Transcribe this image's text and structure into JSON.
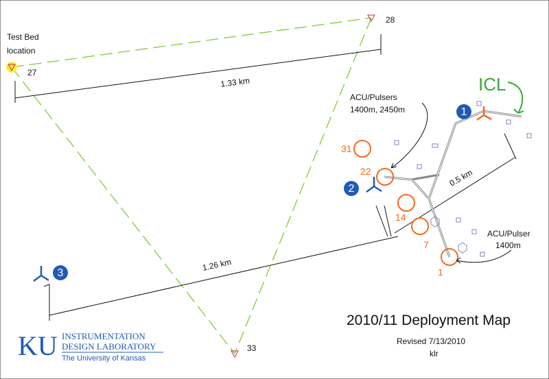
{
  "header": {
    "title": "2010/11 Deployment Map",
    "revised": "Revised 7/13/2010",
    "author": "klr"
  },
  "sites": {
    "test_bed": [
      "Test Bed",
      "location"
    ],
    "s27": "27",
    "s28": "28",
    "s33": "33"
  },
  "distances": {
    "d1": "1.33 km",
    "d2": "1.26 km",
    "d3": "0.5 km"
  },
  "stations": [
    "1",
    "2",
    "3"
  ],
  "pulsers": [
    "31",
    "22",
    "14",
    "7",
    "1"
  ],
  "notes": {
    "acu_pulsers": [
      "ACU/Pulsers",
      "1400m, 2450m"
    ],
    "acu_pulser": [
      "ACU/Pulser",
      "1400m"
    ],
    "icl": "ICL"
  },
  "logo": {
    "mark": "KU",
    "line1": "INSTRUMENTATION",
    "line2": "DESIGN LABORATORY",
    "line3": "The University of Kansas"
  }
}
